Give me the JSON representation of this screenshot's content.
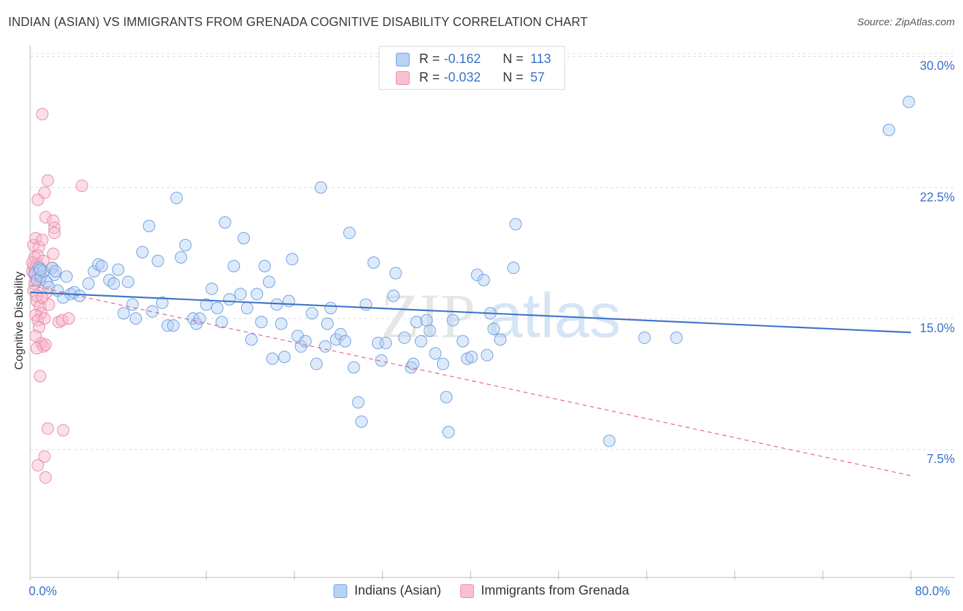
{
  "title": "INDIAN (ASIAN) VS IMMIGRANTS FROM GRENADA COGNITIVE DISABILITY CORRELATION CHART",
  "source": "Source: ZipAtlas.com",
  "watermark": {
    "part1": "ZIP",
    "part2": "atlas"
  },
  "legend": {
    "r_label": "R =",
    "n_label": "N =",
    "rows": [
      {
        "r": "-0.162",
        "n": "113",
        "fill": "#b8d2f3",
        "stroke": "#6fa0e0"
      },
      {
        "r": "-0.032",
        "n": "57",
        "fill": "#f7c1d2",
        "stroke": "#ea8aab"
      }
    ]
  },
  "bottom_legend": {
    "items": [
      {
        "label": "Indians (Asian)",
        "fill": "#b8d2f3",
        "stroke": "#6fa0e0"
      },
      {
        "label": "Immigrants from Grenada",
        "fill": "#f7c1d2",
        "stroke": "#ea8aab"
      }
    ]
  },
  "axes": {
    "ylabel": "Cognitive Disability",
    "y_ticks": [
      {
        "label": "30.0%",
        "value": 30.0
      },
      {
        "label": "22.5%",
        "value": 22.5
      },
      {
        "label": "15.0%",
        "value": 15.0
      },
      {
        "label": "7.5%",
        "value": 7.5
      }
    ],
    "x_tick_left": "0.0%",
    "x_tick_right": "80.0%"
  },
  "chart_data": {
    "type": "scatter",
    "xlim": [
      0,
      80
    ],
    "ylim": [
      0,
      31
    ],
    "grid": true,
    "colors": {
      "blue": "#3a72c8",
      "pink": "#e2628c"
    },
    "series": [
      {
        "name": "Indians (Asian)",
        "trend": {
          "x": [
            0,
            80
          ],
          "y": [
            16.5,
            14.2
          ]
        },
        "points": [
          [
            0.4,
            17.6
          ],
          [
            0.6,
            17.2
          ],
          [
            0.8,
            17.9
          ],
          [
            1.0,
            17.4
          ],
          [
            1.2,
            17.7
          ],
          [
            1.5,
            17.1
          ],
          [
            1.7,
            16.8
          ],
          [
            2.0,
            17.9
          ],
          [
            2.2,
            17.5
          ],
          [
            2.5,
            16.6
          ],
          [
            3.0,
            16.2
          ],
          [
            3.3,
            17.4
          ],
          [
            3.7,
            16.4
          ],
          [
            4.0,
            16.5
          ],
          [
            4.5,
            16.3
          ],
          [
            5.3,
            17.0
          ],
          [
            5.8,
            17.7
          ],
          [
            6.2,
            18.1
          ],
          [
            6.5,
            18.0
          ],
          [
            7.2,
            17.2
          ],
          [
            7.6,
            17.0
          ],
          [
            8.0,
            17.8
          ],
          [
            8.5,
            15.3
          ],
          [
            8.9,
            17.1
          ],
          [
            9.3,
            15.8
          ],
          [
            9.6,
            15.0
          ],
          [
            10.2,
            18.8
          ],
          [
            10.8,
            20.3
          ],
          [
            11.1,
            15.4
          ],
          [
            11.6,
            18.3
          ],
          [
            12.0,
            15.9
          ],
          [
            12.5,
            14.6
          ],
          [
            13.0,
            14.6
          ],
          [
            13.3,
            21.9
          ],
          [
            13.7,
            18.5
          ],
          [
            14.1,
            19.2
          ],
          [
            14.8,
            15.0
          ],
          [
            15.1,
            14.7
          ],
          [
            15.4,
            15.0
          ],
          [
            16.0,
            15.8
          ],
          [
            16.5,
            16.7
          ],
          [
            17.0,
            15.6
          ],
          [
            17.4,
            14.8
          ],
          [
            17.7,
            20.5
          ],
          [
            18.1,
            16.1
          ],
          [
            18.5,
            18.0
          ],
          [
            19.1,
            16.4
          ],
          [
            19.4,
            19.6
          ],
          [
            19.7,
            15.6
          ],
          [
            20.1,
            13.8
          ],
          [
            20.6,
            16.4
          ],
          [
            21.0,
            14.8
          ],
          [
            21.3,
            18.0
          ],
          [
            21.7,
            17.1
          ],
          [
            22.0,
            12.7
          ],
          [
            22.4,
            15.8
          ],
          [
            22.8,
            14.7
          ],
          [
            23.1,
            12.8
          ],
          [
            23.5,
            16.0
          ],
          [
            23.8,
            18.4
          ],
          [
            24.3,
            14.0
          ],
          [
            24.6,
            13.4
          ],
          [
            25.0,
            13.7
          ],
          [
            25.6,
            15.3
          ],
          [
            26.0,
            12.4
          ],
          [
            26.4,
            22.5
          ],
          [
            26.8,
            13.4
          ],
          [
            27.0,
            14.7
          ],
          [
            27.3,
            15.6
          ],
          [
            27.8,
            13.8
          ],
          [
            28.2,
            14.1
          ],
          [
            28.6,
            13.7
          ],
          [
            29.0,
            19.9
          ],
          [
            29.4,
            12.2
          ],
          [
            29.8,
            10.2
          ],
          [
            30.1,
            9.1
          ],
          [
            30.5,
            15.8
          ],
          [
            31.2,
            18.2
          ],
          [
            31.6,
            13.6
          ],
          [
            31.9,
            12.6
          ],
          [
            32.3,
            13.6
          ],
          [
            33.0,
            16.3
          ],
          [
            33.2,
            17.6
          ],
          [
            34.0,
            13.9
          ],
          [
            34.6,
            12.2
          ],
          [
            34.8,
            12.4
          ],
          [
            35.1,
            14.8
          ],
          [
            35.5,
            13.7
          ],
          [
            36.0,
            14.9
          ],
          [
            36.3,
            14.3
          ],
          [
            36.8,
            13.0
          ],
          [
            37.5,
            12.4
          ],
          [
            37.8,
            10.5
          ],
          [
            38.0,
            8.5
          ],
          [
            38.4,
            14.9
          ],
          [
            39.3,
            13.7
          ],
          [
            39.7,
            12.7
          ],
          [
            40.1,
            12.8
          ],
          [
            40.6,
            17.5
          ],
          [
            41.2,
            17.2
          ],
          [
            41.5,
            12.9
          ],
          [
            41.8,
            15.3
          ],
          [
            42.1,
            14.4
          ],
          [
            42.7,
            13.8
          ],
          [
            43.9,
            17.9
          ],
          [
            44.1,
            20.4
          ],
          [
            52.6,
            8.0
          ],
          [
            55.8,
            13.9
          ],
          [
            58.7,
            13.9
          ],
          [
            78.0,
            25.8
          ],
          [
            79.8,
            27.4
          ],
          [
            2.3,
            17.7
          ],
          [
            0.9,
            17.8
          ]
        ]
      },
      {
        "name": "Immigrants from Grenada",
        "trend": {
          "x": [
            0,
            80
          ],
          "y": [
            16.9,
            6.0
          ]
        },
        "points": [
          [
            0.2,
            17.7
          ],
          [
            0.3,
            18.0
          ],
          [
            0.4,
            17.5
          ],
          [
            0.5,
            17.9
          ],
          [
            0.6,
            17.3
          ],
          [
            0.7,
            18.1
          ],
          [
            0.8,
            17.6
          ],
          [
            0.9,
            17.2
          ],
          [
            1.0,
            17.8
          ],
          [
            0.3,
            19.2
          ],
          [
            0.5,
            19.6
          ],
          [
            0.8,
            19.1
          ],
          [
            1.1,
            19.5
          ],
          [
            0.4,
            18.5
          ],
          [
            0.7,
            18.6
          ],
          [
            1.2,
            18.3
          ],
          [
            0.3,
            16.6
          ],
          [
            0.6,
            16.0
          ],
          [
            0.9,
            15.7
          ],
          [
            1.0,
            15.3
          ],
          [
            0.5,
            15.2
          ],
          [
            0.7,
            14.9
          ],
          [
            1.3,
            15.0
          ],
          [
            0.8,
            14.5
          ],
          [
            1.0,
            13.6
          ],
          [
            1.2,
            13.4
          ],
          [
            0.6,
            13.3
          ],
          [
            1.4,
            13.5
          ],
          [
            0.5,
            14.0
          ],
          [
            0.9,
            11.7
          ],
          [
            1.1,
            26.7
          ],
          [
            1.3,
            22.2
          ],
          [
            0.7,
            21.8
          ],
          [
            1.6,
            22.9
          ],
          [
            1.4,
            20.8
          ],
          [
            2.1,
            20.6
          ],
          [
            2.2,
            20.2
          ],
          [
            2.2,
            19.9
          ],
          [
            2.1,
            18.7
          ],
          [
            2.0,
            17.9
          ],
          [
            1.5,
            16.5
          ],
          [
            1.7,
            15.8
          ],
          [
            2.6,
            14.8
          ],
          [
            2.9,
            14.9
          ],
          [
            3.5,
            15.0
          ],
          [
            4.7,
            22.6
          ],
          [
            1.6,
            8.7
          ],
          [
            3.0,
            8.6
          ],
          [
            1.3,
            7.1
          ],
          [
            0.7,
            6.6
          ],
          [
            1.4,
            5.9
          ],
          [
            0.4,
            17.0
          ],
          [
            0.6,
            16.3
          ],
          [
            1.1,
            16.2
          ],
          [
            0.9,
            17.4
          ],
          [
            0.2,
            18.2
          ],
          [
            0.5,
            17.6
          ]
        ]
      }
    ]
  }
}
